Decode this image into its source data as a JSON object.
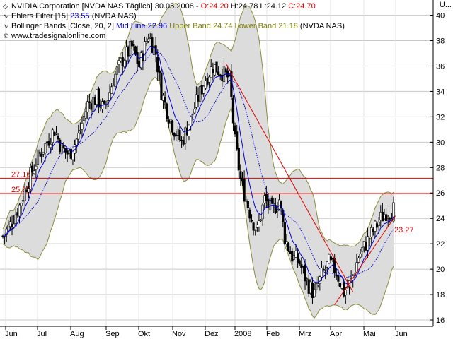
{
  "header": {
    "line1": {
      "icon": "diamond-icon",
      "name": "NVIDIA Corporation [NVDA NAS  Täglich] 30.05.2008 - ",
      "open": "O:24.20",
      "high": "H:24.78",
      "low": "L:24.12",
      "close": "C:24.70"
    },
    "line2": {
      "icon": "line-icon",
      "name": "Ehlers Filter [15] ",
      "value": "23.55",
      "suffix": " (NVDA NAS)"
    },
    "line3": {
      "icon": "line-icon",
      "name": "Bollinger Bands [Close, 20, 2] ",
      "mid": "Mid Line 22.96",
      "upper": " Upper Band 24.74",
      "lower": " Lower Band 21.18",
      "suffix": " (NVDA NAS)"
    },
    "line4": {
      "icon": "copyright-icon",
      "text": "www.tradesignalonline.com"
    },
    "corner": "U..."
  },
  "colors": {
    "red": "#dd0000",
    "blue": "#0000cc",
    "olive": "#7a7a00",
    "band_fill": "#dcdcdc",
    "band_edge": "#8c8c3c"
  },
  "chart_data": {
    "type": "candlestick",
    "ylim": [
      15.5,
      41.2
    ],
    "y_ticks": [
      16,
      18,
      20,
      22,
      24,
      26,
      28,
      30,
      32,
      34,
      36,
      38,
      40
    ],
    "x_labels": [
      "Jun",
      "Jul",
      "Aug",
      "Sep",
      "Okt",
      "Nov",
      "Dez",
      "2008",
      "Feb",
      "Mrz",
      "Apr",
      "Mai",
      "Jun"
    ],
    "horizontal_lines": [
      {
        "value": 27.16,
        "label": "27.16"
      },
      {
        "value": 25.95,
        "label": "25.95"
      }
    ],
    "last_value_label": "23.27",
    "price_path": [
      [
        0,
        22.6
      ],
      [
        4,
        23.5
      ],
      [
        9,
        25.0
      ],
      [
        14,
        27.0
      ],
      [
        19,
        28.8
      ],
      [
        24,
        30.0
      ],
      [
        28,
        31.0
      ],
      [
        32,
        29.5
      ],
      [
        36,
        29.0
      ],
      [
        41,
        30.5
      ],
      [
        46,
        33.0
      ],
      [
        51,
        33.5
      ],
      [
        55,
        32.5
      ],
      [
        60,
        35.0
      ],
      [
        65,
        36.5
      ],
      [
        70,
        37.5
      ],
      [
        74,
        36.0
      ],
      [
        79,
        38.5
      ],
      [
        83,
        37.0
      ],
      [
        86,
        34.0
      ],
      [
        89,
        32.5
      ],
      [
        93,
        31.0
      ],
      [
        97,
        30.0
      ],
      [
        101,
        31.5
      ],
      [
        106,
        33.5
      ],
      [
        110,
        35.0
      ],
      [
        114,
        36.0
      ],
      [
        119,
        35.5
      ],
      [
        123,
        35.0
      ],
      [
        126,
        30.0
      ],
      [
        129,
        27.0
      ],
      [
        132,
        25.5
      ],
      [
        135,
        24.0
      ],
      [
        138,
        23.0
      ],
      [
        142,
        25.5
      ],
      [
        146,
        24.5
      ],
      [
        150,
        25.5
      ],
      [
        153,
        22.5
      ],
      [
        157,
        21.0
      ],
      [
        161,
        20.5
      ],
      [
        165,
        19.0
      ],
      [
        169,
        18.0
      ],
      [
        173,
        19.5
      ],
      [
        177,
        20.5
      ],
      [
        181,
        19.8
      ],
      [
        185,
        18.2
      ],
      [
        189,
        19.0
      ],
      [
        193,
        21.0
      ],
      [
        197,
        22.0
      ],
      [
        201,
        23.0
      ],
      [
        205,
        24.0
      ],
      [
        208,
        24.5
      ],
      [
        212,
        24.7
      ]
    ],
    "bars": 213,
    "trendline_down": {
      "from": [
        121,
        36.2
      ],
      "to": [
        190,
        18.2
      ]
    },
    "trendline_up": {
      "from": [
        180,
        17.2
      ],
      "to": [
        213,
        24.2
      ]
    }
  }
}
